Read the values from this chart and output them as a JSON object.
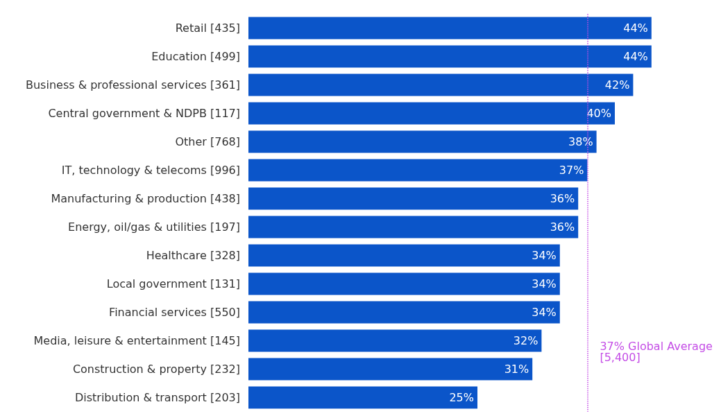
{
  "chart_data": {
    "type": "bar",
    "orientation": "horizontal",
    "categories": [
      "Retail [435]",
      "Education [499]",
      "Business & professional services [361]",
      "Central government & NDPB [117]",
      "Other [768]",
      "IT, technology & telecoms [996]",
      "Manufacturing & production [438]",
      "Energy, oil/gas & utilities [197]",
      "Healthcare [328]",
      "Local government [131]",
      "Financial services [550]",
      "Media, leisure & entertainment [145]",
      "Construction & property [232]",
      "Distribution & transport [203]"
    ],
    "values": [
      44,
      44,
      42,
      40,
      38,
      37,
      36,
      36,
      34,
      34,
      34,
      32,
      31,
      25
    ],
    "value_labels": [
      "44%",
      "44%",
      "42%",
      "40%",
      "38%",
      "37%",
      "36%",
      "36%",
      "34%",
      "34%",
      "34%",
      "32%",
      "31%",
      "25%"
    ],
    "color": "#0b55c9",
    "tick_labels": "y",
    "grid": false,
    "ref_lines": [
      {
        "axis": "x",
        "value": 37,
        "label": "37% Global Average [5,400]",
        "color": "#c44de6",
        "line_style": "dotted"
      }
    ]
  }
}
